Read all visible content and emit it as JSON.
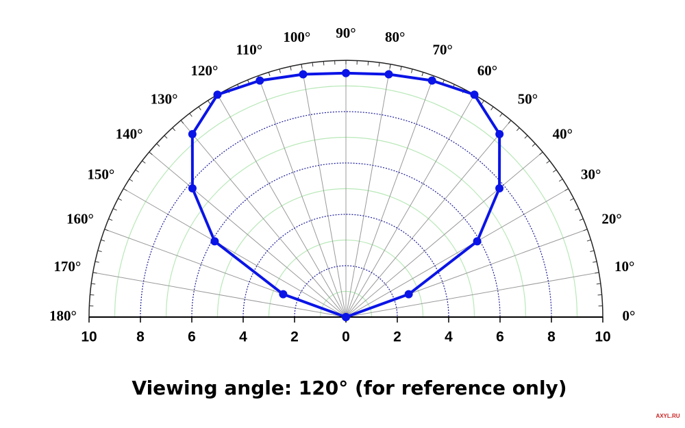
{
  "chart_data": {
    "type": "polar",
    "caption": "Viewing angle: 120° (for reference only)",
    "watermark": "AXYL.RU",
    "theta": [
      0,
      20,
      30,
      40,
      50,
      60,
      70,
      80,
      90,
      100,
      110,
      120,
      130,
      140,
      150,
      160,
      180
    ],
    "values": [
      0,
      2.6,
      5.9,
      7.8,
      9.3,
      10,
      9.8,
      9.6,
      9.5,
      9.6,
      9.8,
      10,
      9.3,
      7.8,
      5.9,
      2.6,
      0
    ],
    "color": "#0a14e6",
    "rlim": [
      0,
      10
    ],
    "rticks": [
      0,
      2,
      4,
      6,
      8,
      10
    ],
    "thetalim": [
      0,
      180
    ],
    "thetaticks": [
      {
        "value": 0,
        "label": "0°"
      },
      {
        "value": 10,
        "label": "10°"
      },
      {
        "value": 20,
        "label": "20°"
      },
      {
        "value": 30,
        "label": "30°"
      },
      {
        "value": 40,
        "label": "40°"
      },
      {
        "value": 50,
        "label": "50°"
      },
      {
        "value": 60,
        "label": "60°"
      },
      {
        "value": 70,
        "label": "70°"
      },
      {
        "value": 80,
        "label": "80°"
      },
      {
        "value": 90,
        "label": "90°"
      },
      {
        "value": 100,
        "label": "100°"
      },
      {
        "value": 110,
        "label": "110°"
      },
      {
        "value": 120,
        "label": "120°"
      },
      {
        "value": 130,
        "label": "130°"
      },
      {
        "value": 140,
        "label": "140°"
      },
      {
        "value": 150,
        "label": "150°"
      },
      {
        "value": 160,
        "label": "160°"
      },
      {
        "value": 170,
        "label": "170°"
      },
      {
        "value": 180,
        "label": "180°"
      }
    ],
    "grid_color": "#1a1a99",
    "minor_grid": [
      1,
      3,
      5,
      7,
      9
    ],
    "minor_grid_color": "#b8e8b8",
    "spoke_color": "#999999"
  }
}
